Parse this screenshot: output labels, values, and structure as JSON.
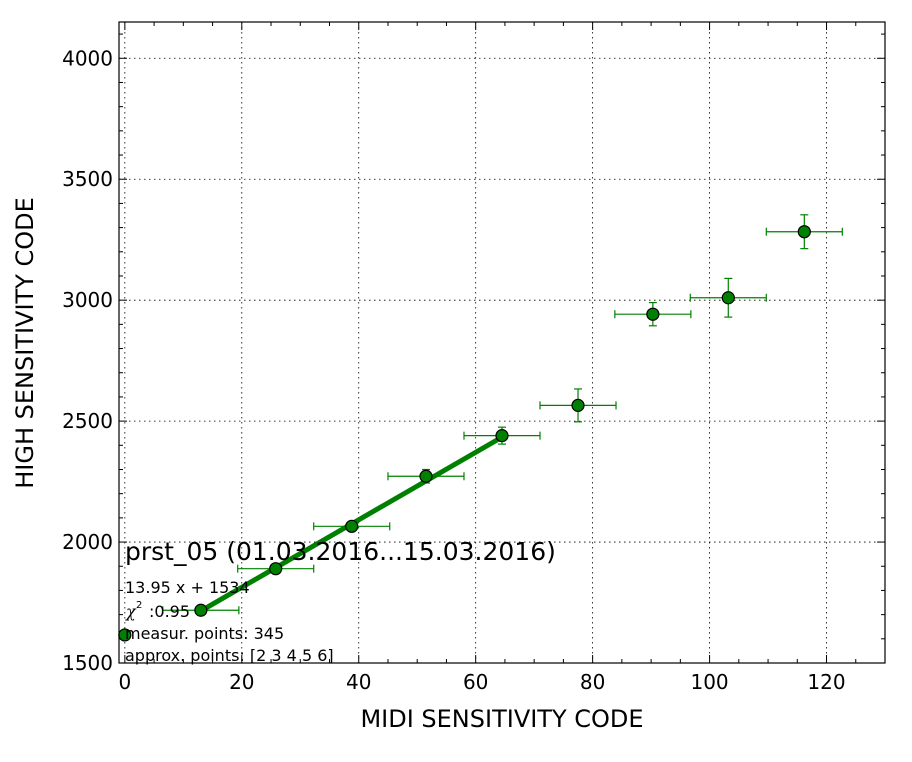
{
  "chart_data": {
    "type": "scatter",
    "xlabel": "MIDI SENSITIVITY CODE",
    "ylabel": "HIGH SENSITIVITY CODE",
    "xlim": [
      -1,
      130
    ],
    "ylim": [
      1500,
      4150
    ],
    "xticks": [
      0,
      20,
      40,
      60,
      80,
      100,
      120
    ],
    "yticks": [
      1500,
      2000,
      2500,
      3000,
      3500,
      4000
    ],
    "grid": true,
    "colors": {
      "marker": "#008000",
      "errorbar": "#008000",
      "fit_line": "#008000",
      "marker_edge": "#000000"
    },
    "points": [
      {
        "x": 0,
        "y": 1616,
        "xerr": 0,
        "yerr": 12
      },
      {
        "x": 13,
        "y": 1718,
        "xerr": 6.5,
        "yerr": 10
      },
      {
        "x": 25.8,
        "y": 1890,
        "xerr": 6.5,
        "yerr": 10
      },
      {
        "x": 38.8,
        "y": 2065,
        "xerr": 6.5,
        "yerr": 12
      },
      {
        "x": 51.5,
        "y": 2272,
        "xerr": 6.5,
        "yerr": 28
      },
      {
        "x": 64.5,
        "y": 2440,
        "xerr": 6.5,
        "yerr": 35
      },
      {
        "x": 77.5,
        "y": 2565,
        "xerr": 6.5,
        "yerr": 68
      },
      {
        "x": 90.3,
        "y": 2942,
        "xerr": 6.5,
        "yerr": 48
      },
      {
        "x": 103.2,
        "y": 3010,
        "xerr": 6.5,
        "yerr": 80
      },
      {
        "x": 116.2,
        "y": 3283,
        "xerr": 6.5,
        "yerr": 70
      }
    ],
    "fit": {
      "slope": 13.95,
      "intercept": 1534,
      "x_start": 13,
      "x_end": 64.5
    },
    "annotation": {
      "title": "prst_05 (01.03.2016...15.03.2016)",
      "equation": "13.95 x + 1534",
      "chi_symbol": "χ",
      "chi_value": ":0.95",
      "measur_points": "measur. points: 345",
      "approx_points": "approx. points: [2 3 4 5 6]"
    }
  }
}
